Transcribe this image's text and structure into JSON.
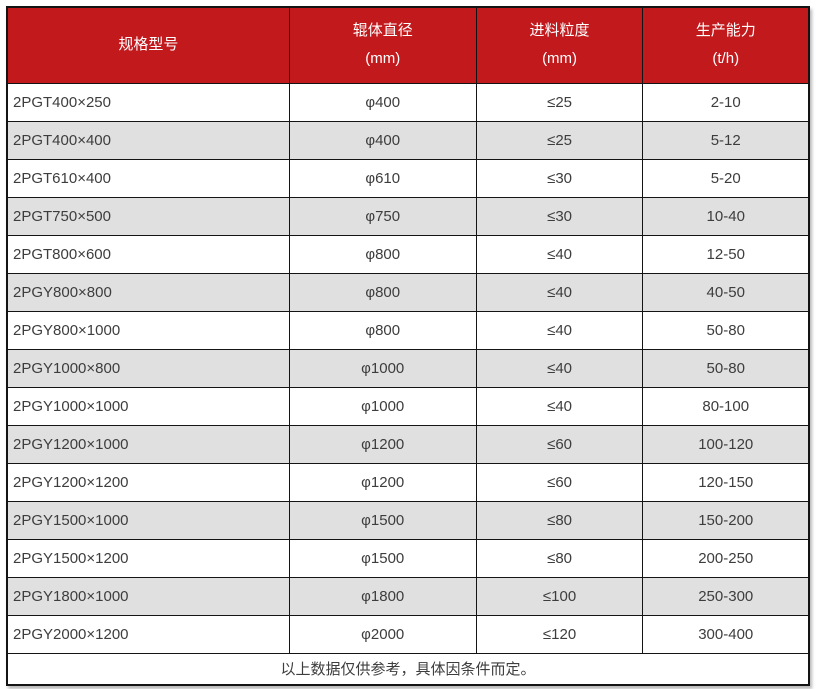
{
  "colors": {
    "header_bg": "#c2191d",
    "header_text": "#ffffff",
    "row_alt_bg": "#e0e0e0",
    "border": "#141414",
    "body_text": "#3d3d3d"
  },
  "table": {
    "columns": [
      {
        "label": "规格型号",
        "unit": ""
      },
      {
        "label": "辊体直径",
        "unit": "(mm)"
      },
      {
        "label": "进料粒度",
        "unit": "(mm)"
      },
      {
        "label": "生产能力",
        "unit": "(t/h)"
      }
    ],
    "rows": [
      [
        "2PGT400×250",
        "φ400",
        "≤25",
        "2-10"
      ],
      [
        "2PGT400×400",
        "φ400",
        "≤25",
        "5-12"
      ],
      [
        "2PGT610×400",
        "φ610",
        "≤30",
        "5-20"
      ],
      [
        "2PGT750×500",
        "φ750",
        "≤30",
        "10-40"
      ],
      [
        "2PGT800×600",
        "φ800",
        "≤40",
        "12-50"
      ],
      [
        "2PGY800×800",
        "φ800",
        "≤40",
        "40-50"
      ],
      [
        "2PGY800×1000",
        "φ800",
        "≤40",
        "50-80"
      ],
      [
        "2PGY1000×800",
        "φ1000",
        "≤40",
        "50-80"
      ],
      [
        "2PGY1000×1000",
        "φ1000",
        "≤40",
        "80-100"
      ],
      [
        "2PGY1200×1000",
        "φ1200",
        "≤60",
        "100-120"
      ],
      [
        "2PGY1200×1200",
        "φ1200",
        "≤60",
        "120-150"
      ],
      [
        "2PGY1500×1000",
        "φ1500",
        "≤80",
        "150-200"
      ],
      [
        "2PGY1500×1200",
        "φ1500",
        "≤80",
        "200-250"
      ],
      [
        "2PGY1800×1000",
        "φ1800",
        "≤100",
        "250-300"
      ],
      [
        "2PGY2000×1200",
        "φ2000",
        "≤120",
        "300-400"
      ]
    ],
    "footer_note": "以上数据仅供参考，具体因条件而定。"
  },
  "chart_data": {
    "type": "table",
    "title": "",
    "columns": [
      "规格型号",
      "辊体直径 (mm)",
      "进料粒度 (mm)",
      "生产能力 (t/h)"
    ],
    "rows": [
      [
        "2PGT400×250",
        "φ400",
        "≤25",
        "2-10"
      ],
      [
        "2PGT400×400",
        "φ400",
        "≤25",
        "5-12"
      ],
      [
        "2PGT610×400",
        "φ610",
        "≤30",
        "5-20"
      ],
      [
        "2PGT750×500",
        "φ750",
        "≤30",
        "10-40"
      ],
      [
        "2PGT800×600",
        "φ800",
        "≤40",
        "12-50"
      ],
      [
        "2PGY800×800",
        "φ800",
        "≤40",
        "40-50"
      ],
      [
        "2PGY800×1000",
        "φ800",
        "≤40",
        "50-80"
      ],
      [
        "2PGY1000×800",
        "φ1000",
        "≤40",
        "50-80"
      ],
      [
        "2PGY1000×1000",
        "φ1000",
        "≤40",
        "80-100"
      ],
      [
        "2PGY1200×1000",
        "φ1200",
        "≤60",
        "100-120"
      ],
      [
        "2PGY1200×1200",
        "φ1200",
        "≤60",
        "120-150"
      ],
      [
        "2PGY1500×1000",
        "φ1500",
        "≤80",
        "150-200"
      ],
      [
        "2PGY1500×1200",
        "φ1500",
        "≤80",
        "200-250"
      ],
      [
        "2PGY1800×1000",
        "φ1800",
        "≤100",
        "250-300"
      ],
      [
        "2PGY2000×1200",
        "φ2000",
        "≤120",
        "300-400"
      ]
    ],
    "footnote": "以上数据仅供参考，具体因条件而定。"
  }
}
